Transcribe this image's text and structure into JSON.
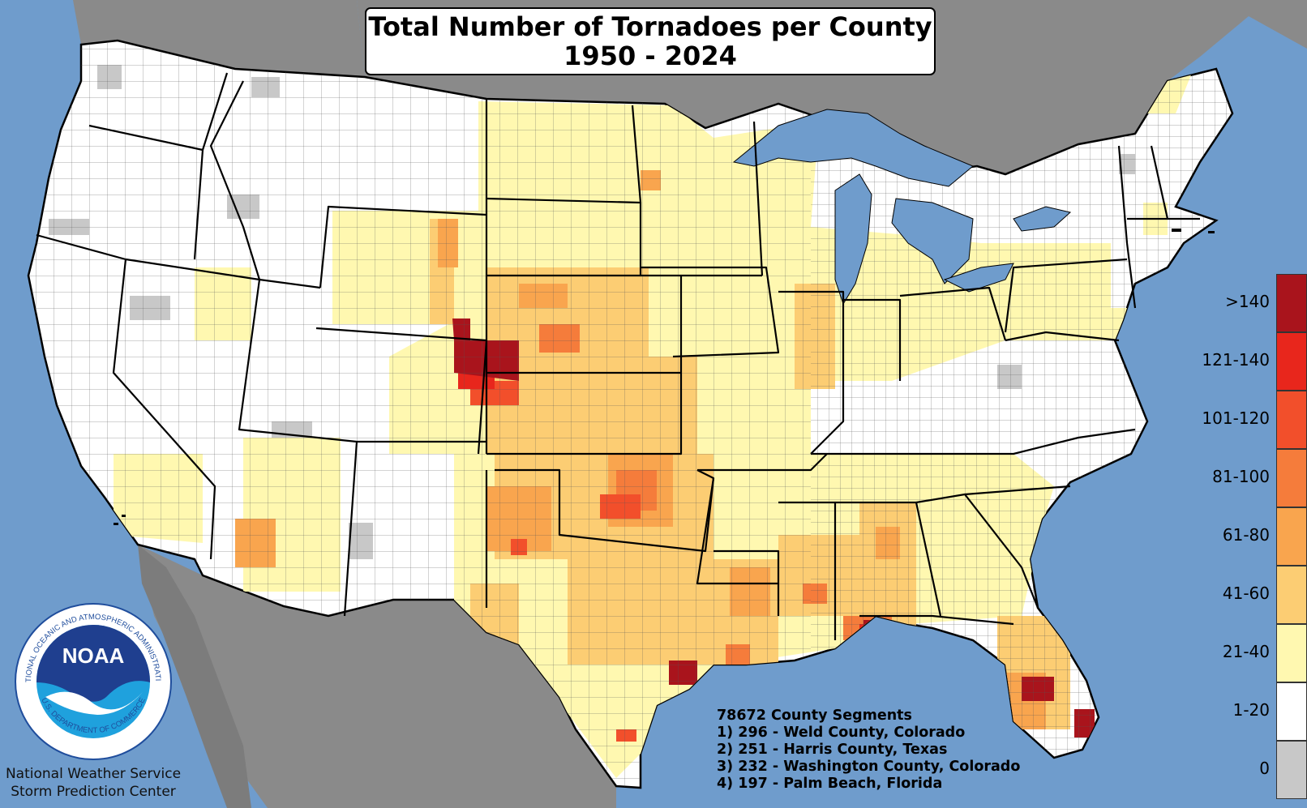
{
  "title": {
    "line1": "Total Number of Tornadoes per County",
    "line2": "1950 - 2024"
  },
  "legend": {
    "items": [
      {
        "label": ">140",
        "color": "#a9141c"
      },
      {
        "label": "121-140",
        "color": "#e8261c"
      },
      {
        "label": "101-120",
        "color": "#f24f2b"
      },
      {
        "label": "81-100",
        "color": "#f57c3b"
      },
      {
        "label": "61-80",
        "color": "#f9a54e"
      },
      {
        "label": "41-60",
        "color": "#fccd73"
      },
      {
        "label": "21-40",
        "color": "#fff8b0"
      },
      {
        "label": "1-20",
        "color": "#ffffff"
      },
      {
        "label": "0",
        "color": "#c8c8c8"
      }
    ]
  },
  "stats": {
    "total": "78672 County Segments",
    "top": [
      "1) 296 - Weld County, Colorado",
      "2) 251 - Harris County, Texas",
      "3) 232 - Washington County, Colorado",
      "4) 197 - Palm Beach, Florida"
    ]
  },
  "logo": {
    "ring_text": "NATIONAL OCEANIC AND ATMOSPHERIC ADMINISTRATION",
    "bottom_text": "U.S. DEPARTMENT OF COMMERCE",
    "mark": "NOAA"
  },
  "agency": {
    "line1": "National Weather Service",
    "line2": "Storm Prediction Center"
  },
  "colors": {
    "ocean": "#6f9ccc",
    "land_outside": "#8a8a8a",
    "county_border": "#444444",
    "state_border": "#000000"
  }
}
